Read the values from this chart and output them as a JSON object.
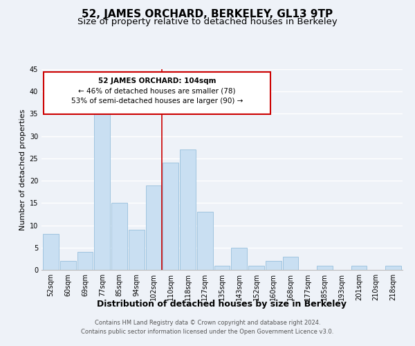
{
  "title": "52, JAMES ORCHARD, BERKELEY, GL13 9TP",
  "subtitle": "Size of property relative to detached houses in Berkeley",
  "xlabel": "Distribution of detached houses by size in Berkeley",
  "ylabel": "Number of detached properties",
  "bin_labels": [
    "52sqm",
    "60sqm",
    "69sqm",
    "77sqm",
    "85sqm",
    "94sqm",
    "102sqm",
    "110sqm",
    "118sqm",
    "127sqm",
    "135sqm",
    "143sqm",
    "152sqm",
    "160sqm",
    "168sqm",
    "177sqm",
    "185sqm",
    "193sqm",
    "201sqm",
    "210sqm",
    "218sqm"
  ],
  "bar_values": [
    8,
    2,
    4,
    35,
    15,
    9,
    19,
    24,
    27,
    13,
    1,
    5,
    1,
    2,
    3,
    0,
    1,
    0,
    1,
    0,
    1
  ],
  "bar_color": "#c9dff2",
  "bar_edge_color": "#a0c4df",
  "vline_x": 6.5,
  "vline_color": "#cc0000",
  "ylim": [
    0,
    45
  ],
  "yticks": [
    0,
    5,
    10,
    15,
    20,
    25,
    30,
    35,
    40,
    45
  ],
  "annotation_title": "52 JAMES ORCHARD: 104sqm",
  "annotation_line2": "← 46% of detached houses are smaller (78)",
  "annotation_line3": "53% of semi-detached houses are larger (90) →",
  "annotation_box_color": "#ffffff",
  "annotation_box_edge": "#cc0000",
  "footer1": "Contains HM Land Registry data © Crown copyright and database right 2024.",
  "footer2": "Contains public sector information licensed under the Open Government Licence v3.0.",
  "bg_color": "#eef2f8",
  "grid_color": "#ffffff",
  "title_fontsize": 11,
  "subtitle_fontsize": 9.5,
  "xlabel_fontsize": 9,
  "ylabel_fontsize": 8,
  "tick_fontsize": 7,
  "ann_fontsize": 7.5,
  "footer_fontsize": 6
}
